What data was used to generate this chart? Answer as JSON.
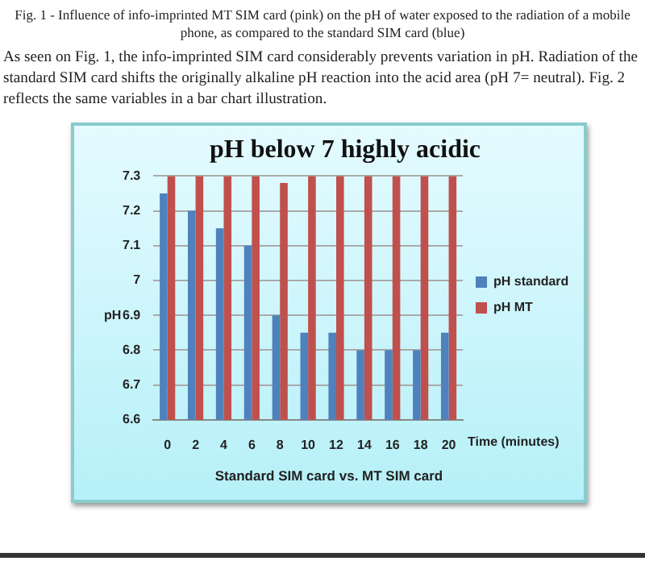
{
  "chart_data": {
    "type": "bar",
    "title": "pH below 7 highly acidic",
    "xlabel": "Time (minutes)",
    "ylabel": "pH",
    "annotations": [
      "Fig. 1 - Influence of info-imprinted MT SIM card (pink) on the pH of water exposed to the radiation of a mobile phone, as compared to the standard SIM card (blue)",
      "As seen on Fig. 1, the info-imprinted SIM card considerably prevents variation in pH. Radiation of the standard SIM card shifts the originally alkaline pH reaction into the acid area (pH 7= neutral). Fig. 2 reflects the same variables in a bar chart illustration.",
      "Standard SIM card vs. MT SIM card"
    ],
    "categories": [
      "0",
      "2",
      "4",
      "6",
      "8",
      "10",
      "12",
      "14",
      "16",
      "18",
      "20"
    ],
    "series": [
      {
        "name": "pH standard",
        "color": "#4f81bd",
        "values": [
          7.25,
          7.2,
          7.15,
          7.1,
          6.9,
          6.85,
          6.85,
          6.8,
          6.8,
          6.8,
          6.85
        ]
      },
      {
        "name": "pH MT",
        "color": "#c0504d",
        "values": [
          7.3,
          7.3,
          7.3,
          7.3,
          7.28,
          7.3,
          7.3,
          7.3,
          7.3,
          7.3,
          7.3
        ]
      }
    ],
    "ylim": [
      6.6,
      7.3
    ],
    "yticks": [
      6.6,
      6.7,
      6.8,
      6.9,
      7,
      7.1,
      7.2,
      7.3
    ],
    "grid": "y",
    "legend": "right"
  }
}
